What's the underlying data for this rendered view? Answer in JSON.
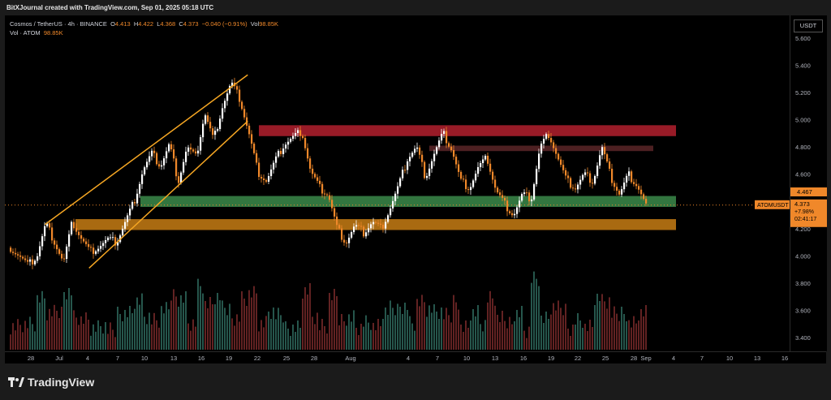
{
  "header": {
    "credit": "BitXJournal created with TradingView.com, Sep 01, 2025 05:18 UTC"
  },
  "legend": {
    "symbol": "Cosmos / TetherUS · 4h · BINANCE",
    "o_label": "O",
    "o_val": "4.413",
    "h_label": "H",
    "h_val": "4.422",
    "l_label": "L",
    "l_val": "4.368",
    "c_label": "C",
    "c_val": "4.373",
    "chg": "−0.040 (−0.91%)",
    "vol_label": "Vol",
    "vol_val": "98.85K",
    "vol_line_label": "Vol · ATOM",
    "vol_line_val": "98.85K"
  },
  "axis_currency": "USDT",
  "price_tags": {
    "high_tag": "4.467",
    "symbol_tag": "ATOMUSDT",
    "last_price": "4.373",
    "change_pct": "+7.98%",
    "countdown": "02:41:17"
  },
  "footer": {
    "brand": "TradingView"
  },
  "colors": {
    "candle_up": "#ffffff",
    "candle_down": "#f0882a",
    "resistance_zone": "#b3202e",
    "support_zone": "#3b8a4a",
    "lower_zone": "#c77c14",
    "channel": "#f5a623"
  },
  "chart_data": {
    "type": "candlestick",
    "timeframe": "4h",
    "y_ticks": [
      "5.600",
      "5.400",
      "5.200",
      "5.000",
      "4.800",
      "4.600",
      "4.400",
      "4.200",
      "4.000",
      "3.800",
      "3.600",
      "3.400"
    ],
    "y_range": [
      3.3,
      5.7
    ],
    "x_ticks": [
      "28",
      "Jul",
      "4",
      "7",
      "10",
      "13",
      "16",
      "19",
      "22",
      "25",
      "28",
      "Aug",
      "4",
      "7",
      "10",
      "13",
      "16",
      "19",
      "22",
      "25",
      "28",
      "Sep",
      "4",
      "7",
      "10",
      "13",
      "16"
    ],
    "close_path": [
      [
        0,
        4.06
      ],
      [
        1,
        4.0
      ],
      [
        2,
        3.93
      ],
      [
        3,
        4.0
      ],
      [
        4,
        4.24
      ],
      [
        5,
        4.1
      ],
      [
        6,
        3.95
      ],
      [
        7,
        4.25
      ],
      [
        8,
        4.13
      ],
      [
        9,
        4.03
      ],
      [
        10,
        4.07
      ],
      [
        11,
        4.12
      ],
      [
        12,
        4.1
      ],
      [
        13,
        4.25
      ],
      [
        14,
        4.4
      ],
      [
        15,
        4.63
      ],
      [
        16,
        4.75
      ],
      [
        17,
        4.66
      ],
      [
        18,
        4.82
      ],
      [
        19,
        4.55
      ],
      [
        20,
        4.8
      ],
      [
        21,
        4.72
      ],
      [
        22,
        5.05
      ],
      [
        23,
        4.85
      ],
      [
        24,
        5.1
      ],
      [
        25,
        5.27
      ],
      [
        26,
        5.15
      ],
      [
        27,
        4.9
      ],
      [
        28,
        4.62
      ],
      [
        29,
        4.55
      ],
      [
        30,
        4.7
      ],
      [
        31,
        4.82
      ],
      [
        32,
        4.87
      ],
      [
        33,
        4.92
      ],
      [
        34,
        4.62
      ],
      [
        35,
        4.5
      ],
      [
        36,
        4.45
      ],
      [
        37,
        4.2
      ],
      [
        38,
        4.1
      ],
      [
        39,
        4.22
      ],
      [
        40,
        4.17
      ],
      [
        41,
        4.25
      ],
      [
        42,
        4.2
      ],
      [
        43,
        4.35
      ],
      [
        44,
        4.52
      ],
      [
        45,
        4.72
      ],
      [
        46,
        4.8
      ],
      [
        47,
        4.58
      ],
      [
        48,
        4.75
      ],
      [
        49,
        4.9
      ],
      [
        50,
        4.78
      ],
      [
        51,
        4.55
      ],
      [
        52,
        4.5
      ],
      [
        53,
        4.65
      ],
      [
        54,
        4.72
      ],
      [
        55,
        4.48
      ],
      [
        56,
        4.38
      ],
      [
        57,
        4.3
      ],
      [
        58,
        4.45
      ],
      [
        59,
        4.42
      ],
      [
        60,
        4.8
      ],
      [
        61,
        4.9
      ],
      [
        62,
        4.72
      ],
      [
        63,
        4.55
      ],
      [
        64,
        4.5
      ],
      [
        65,
        4.6
      ],
      [
        66,
        4.55
      ],
      [
        67,
        4.8
      ],
      [
        68,
        4.58
      ],
      [
        69,
        4.45
      ],
      [
        70,
        4.6
      ],
      [
        71,
        4.52
      ],
      [
        72,
        4.37
      ]
    ],
    "zones": [
      {
        "name": "resistance",
        "from": 4.88,
        "to": 4.96,
        "color": "#b3202e"
      },
      {
        "name": "minor-resistance",
        "from": 4.77,
        "to": 4.81,
        "color": "#5a2628"
      },
      {
        "name": "support",
        "from": 4.36,
        "to": 4.44,
        "color": "#3b8a4a"
      },
      {
        "name": "lower-support",
        "from": 4.19,
        "to": 4.27,
        "color": "#c77c14"
      }
    ],
    "channel": {
      "upper": [
        [
          4,
          4.23
        ],
        [
          27,
          5.33
        ]
      ],
      "lower": [
        [
          9,
          3.91
        ],
        [
          27,
          4.99
        ]
      ]
    },
    "last_price": 4.373
  }
}
